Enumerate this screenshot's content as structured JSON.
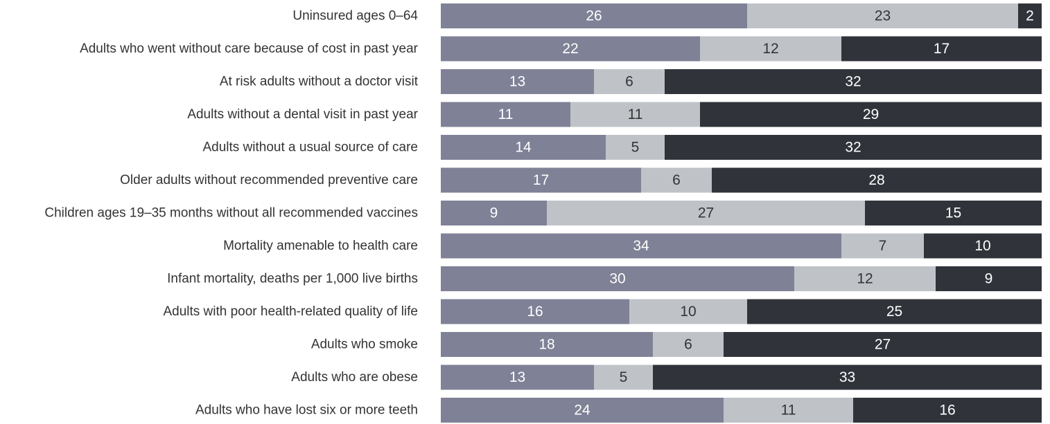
{
  "chart_data": {
    "type": "bar",
    "orientation": "horizontal",
    "stacked": true,
    "categories": [
      "Uninsured ages 0–64",
      "Adults who went without care because of cost in past year",
      "At risk adults without a doctor visit",
      "Adults without a dental visit in past year",
      "Adults without a usual source of care",
      "Older adults without recommended preventive care",
      "Children ages 19–35 months without all recommended vaccines",
      "Mortality amenable to health care",
      "Infant mortality, deaths per 1,000 live births",
      "Adults with poor health-related quality of life",
      "Adults who smoke",
      "Adults who are obese",
      "Adults who have lost six or more teeth"
    ],
    "series": [
      {
        "color": "#7f8196",
        "label_color": "#ffffff",
        "values": [
          26,
          22,
          13,
          11,
          14,
          17,
          9,
          34,
          30,
          16,
          18,
          13,
          24
        ]
      },
      {
        "color": "#bfc3c8",
        "label_color": "#333333",
        "values": [
          23,
          12,
          6,
          11,
          5,
          6,
          27,
          7,
          12,
          10,
          6,
          5,
          11
        ]
      },
      {
        "color": "#30343a",
        "label_color": "#ffffff",
        "values": [
          2,
          17,
          32,
          29,
          32,
          28,
          15,
          10,
          9,
          25,
          27,
          33,
          16
        ]
      }
    ],
    "xlim": [
      0,
      51
    ]
  }
}
